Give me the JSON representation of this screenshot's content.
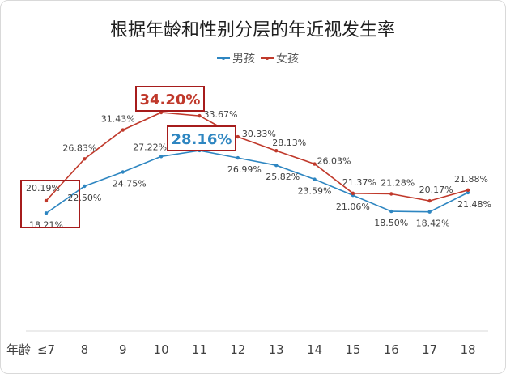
{
  "chart_data": {
    "type": "line",
    "title": "根据年龄和性别分层的年近视发生率",
    "xlabel": "年龄",
    "ylabel": "",
    "categories": [
      "≤7",
      "8",
      "9",
      "10",
      "11",
      "12",
      "13",
      "14",
      "15",
      "16",
      "17",
      "18"
    ],
    "ylim": [
      0,
      40
    ],
    "grid": false,
    "legend": "top-center",
    "series": [
      {
        "name": "男孩",
        "color": "#2e86c1",
        "values": [
          18.21,
          22.5,
          24.75,
          27.22,
          28.16,
          26.99,
          25.82,
          23.59,
          21.06,
          18.5,
          18.42,
          21.48
        ],
        "labels": [
          "18.21%",
          "22.50%",
          "24.75%",
          "27.22%",
          "",
          "26.99%",
          "25.82%",
          "23.59%",
          "21.06%",
          "18.50%",
          "18.42%",
          "21.48%"
        ]
      },
      {
        "name": "女孩",
        "color": "#c0392b",
        "values": [
          20.19,
          26.83,
          31.43,
          34.2,
          33.67,
          30.33,
          28.13,
          26.03,
          21.37,
          21.28,
          20.17,
          21.88
        ],
        "labels": [
          "20.19%",
          "26.83%",
          "31.43%",
          "",
          "33.67%",
          "30.33%",
          "28.13%",
          "26.03%",
          "21.37%",
          "21.28%",
          "20.17%",
          "21.88%"
        ]
      }
    ],
    "highlights": {
      "girls_peak": "34.20%",
      "boys_peak": "28.16%"
    }
  }
}
